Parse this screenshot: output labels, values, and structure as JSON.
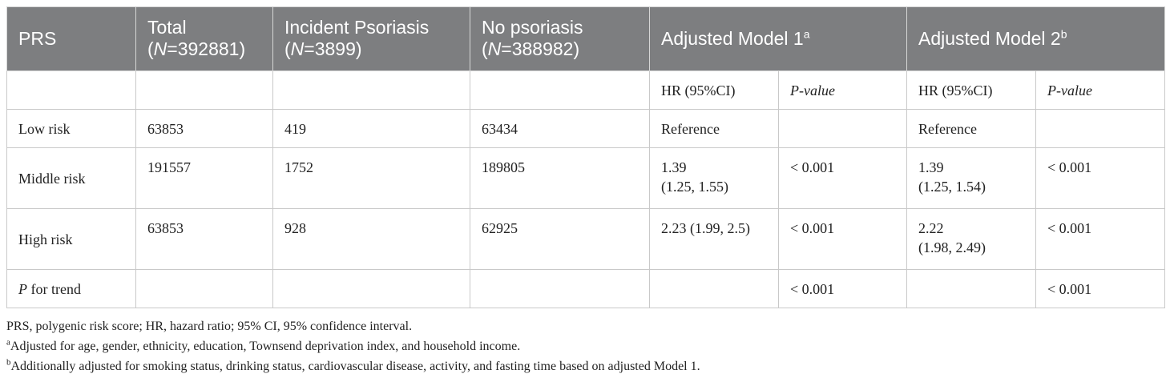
{
  "headers": {
    "prs": "PRS",
    "total": {
      "label": "Total",
      "n_prefix": "(",
      "n_italic": "N",
      "n_value": "=392881)"
    },
    "incident": {
      "label": "Incident Psoriasis",
      "n_prefix": "(",
      "n_italic": "N",
      "n_value": "=3899)"
    },
    "no_psoriasis": {
      "label": "No psoriasis",
      "n_prefix": "(",
      "n_italic": "N",
      "n_value": "=388982)"
    },
    "model1": {
      "label": "Adjusted Model 1",
      "sup": "a"
    },
    "model2": {
      "label": "Adjusted Model 2",
      "sup": "b"
    }
  },
  "subheaders": {
    "hr1": "HR (95%CI)",
    "p1": "P-value",
    "hr2": "HR (95%CI)",
    "p2": "P-value"
  },
  "rows": [
    {
      "label": "Low risk",
      "total": "63853",
      "incident": "419",
      "no_psoriasis": "63434",
      "hr1_a": "Reference",
      "hr1_b": "",
      "p1": "",
      "hr2_a": "Reference",
      "hr2_b": "",
      "p2": ""
    },
    {
      "label": "Middle risk",
      "total": "191557",
      "incident": "1752",
      "no_psoriasis": "189805",
      "hr1_a": "1.39",
      "hr1_b": "(1.25, 1.55)",
      "p1": "< 0.001",
      "hr2_a": "1.39",
      "hr2_b": "(1.25, 1.54)",
      "p2": "< 0.001"
    },
    {
      "label": "High risk",
      "total": "63853",
      "incident": "928",
      "no_psoriasis": "62925",
      "hr1_a": "2.23 (1.99, 2.5)",
      "hr1_b": "",
      "p1": "< 0.001",
      "hr2_a": "2.22",
      "hr2_b": "(1.98, 2.49)",
      "p2": "< 0.001"
    }
  ],
  "trend": {
    "label_italic": "P",
    "label_rest": " for trend",
    "p1": "< 0.001",
    "p2": "< 0.001"
  },
  "footnotes": {
    "abbrev": "PRS, polygenic risk score; HR, hazard ratio; 95% CI, 95% confidence interval.",
    "a_mark": "a",
    "a_text": "Adjusted for age, gender, ethnicity, education, Townsend deprivation index, and household income.",
    "b_mark": "b",
    "b_text": "Additionally adjusted for smoking status, drinking status, cardiovascular disease, activity, and fasting time based on adjusted Model 1."
  }
}
